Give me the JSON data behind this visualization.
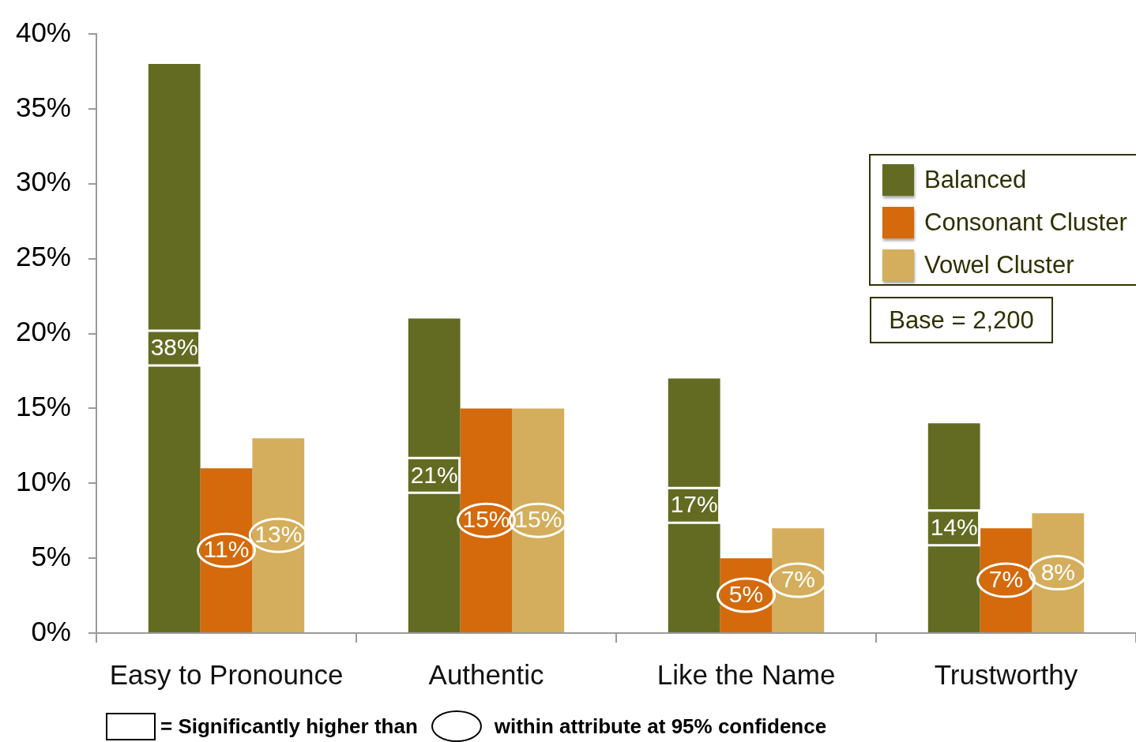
{
  "chart_data": {
    "type": "bar",
    "categories": [
      "Easy to Pronounce",
      "Authentic",
      "Like the Name",
      "Trustworthy"
    ],
    "series": [
      {
        "name": "Balanced",
        "color": "#636b22",
        "values": [
          38,
          21,
          17,
          14
        ],
        "value_labels": [
          "38%",
          "21%",
          "17%",
          "14%"
        ]
      },
      {
        "name": "Consonant Cluster",
        "color": "#d46a0c",
        "values": [
          11,
          15,
          5,
          7
        ],
        "value_labels": [
          "11%",
          "15%",
          "5%",
          "7%"
        ]
      },
      {
        "name": "Vowel Cluster",
        "color": "#d4ae5c",
        "values": [
          13,
          15,
          7,
          8
        ],
        "value_labels": [
          "13%",
          "15%",
          "7%",
          "8%"
        ]
      }
    ],
    "ylim": [
      0,
      40
    ],
    "yticks": [
      {
        "value": 0,
        "label": "0%"
      },
      {
        "value": 5,
        "label": "5%"
      },
      {
        "value": 10,
        "label": "10%"
      },
      {
        "value": 15,
        "label": "15%"
      },
      {
        "value": 20,
        "label": "20%"
      },
      {
        "value": 25,
        "label": "25%"
      },
      {
        "value": 30,
        "label": "30%"
      },
      {
        "value": 35,
        "label": "35%"
      },
      {
        "value": 40,
        "label": "40%"
      }
    ],
    "grid": false,
    "legend": "top right",
    "annotations": [
      "Base = 2,200",
      "= Significantly higher than",
      "within attribute at 95% confidence"
    ]
  }
}
